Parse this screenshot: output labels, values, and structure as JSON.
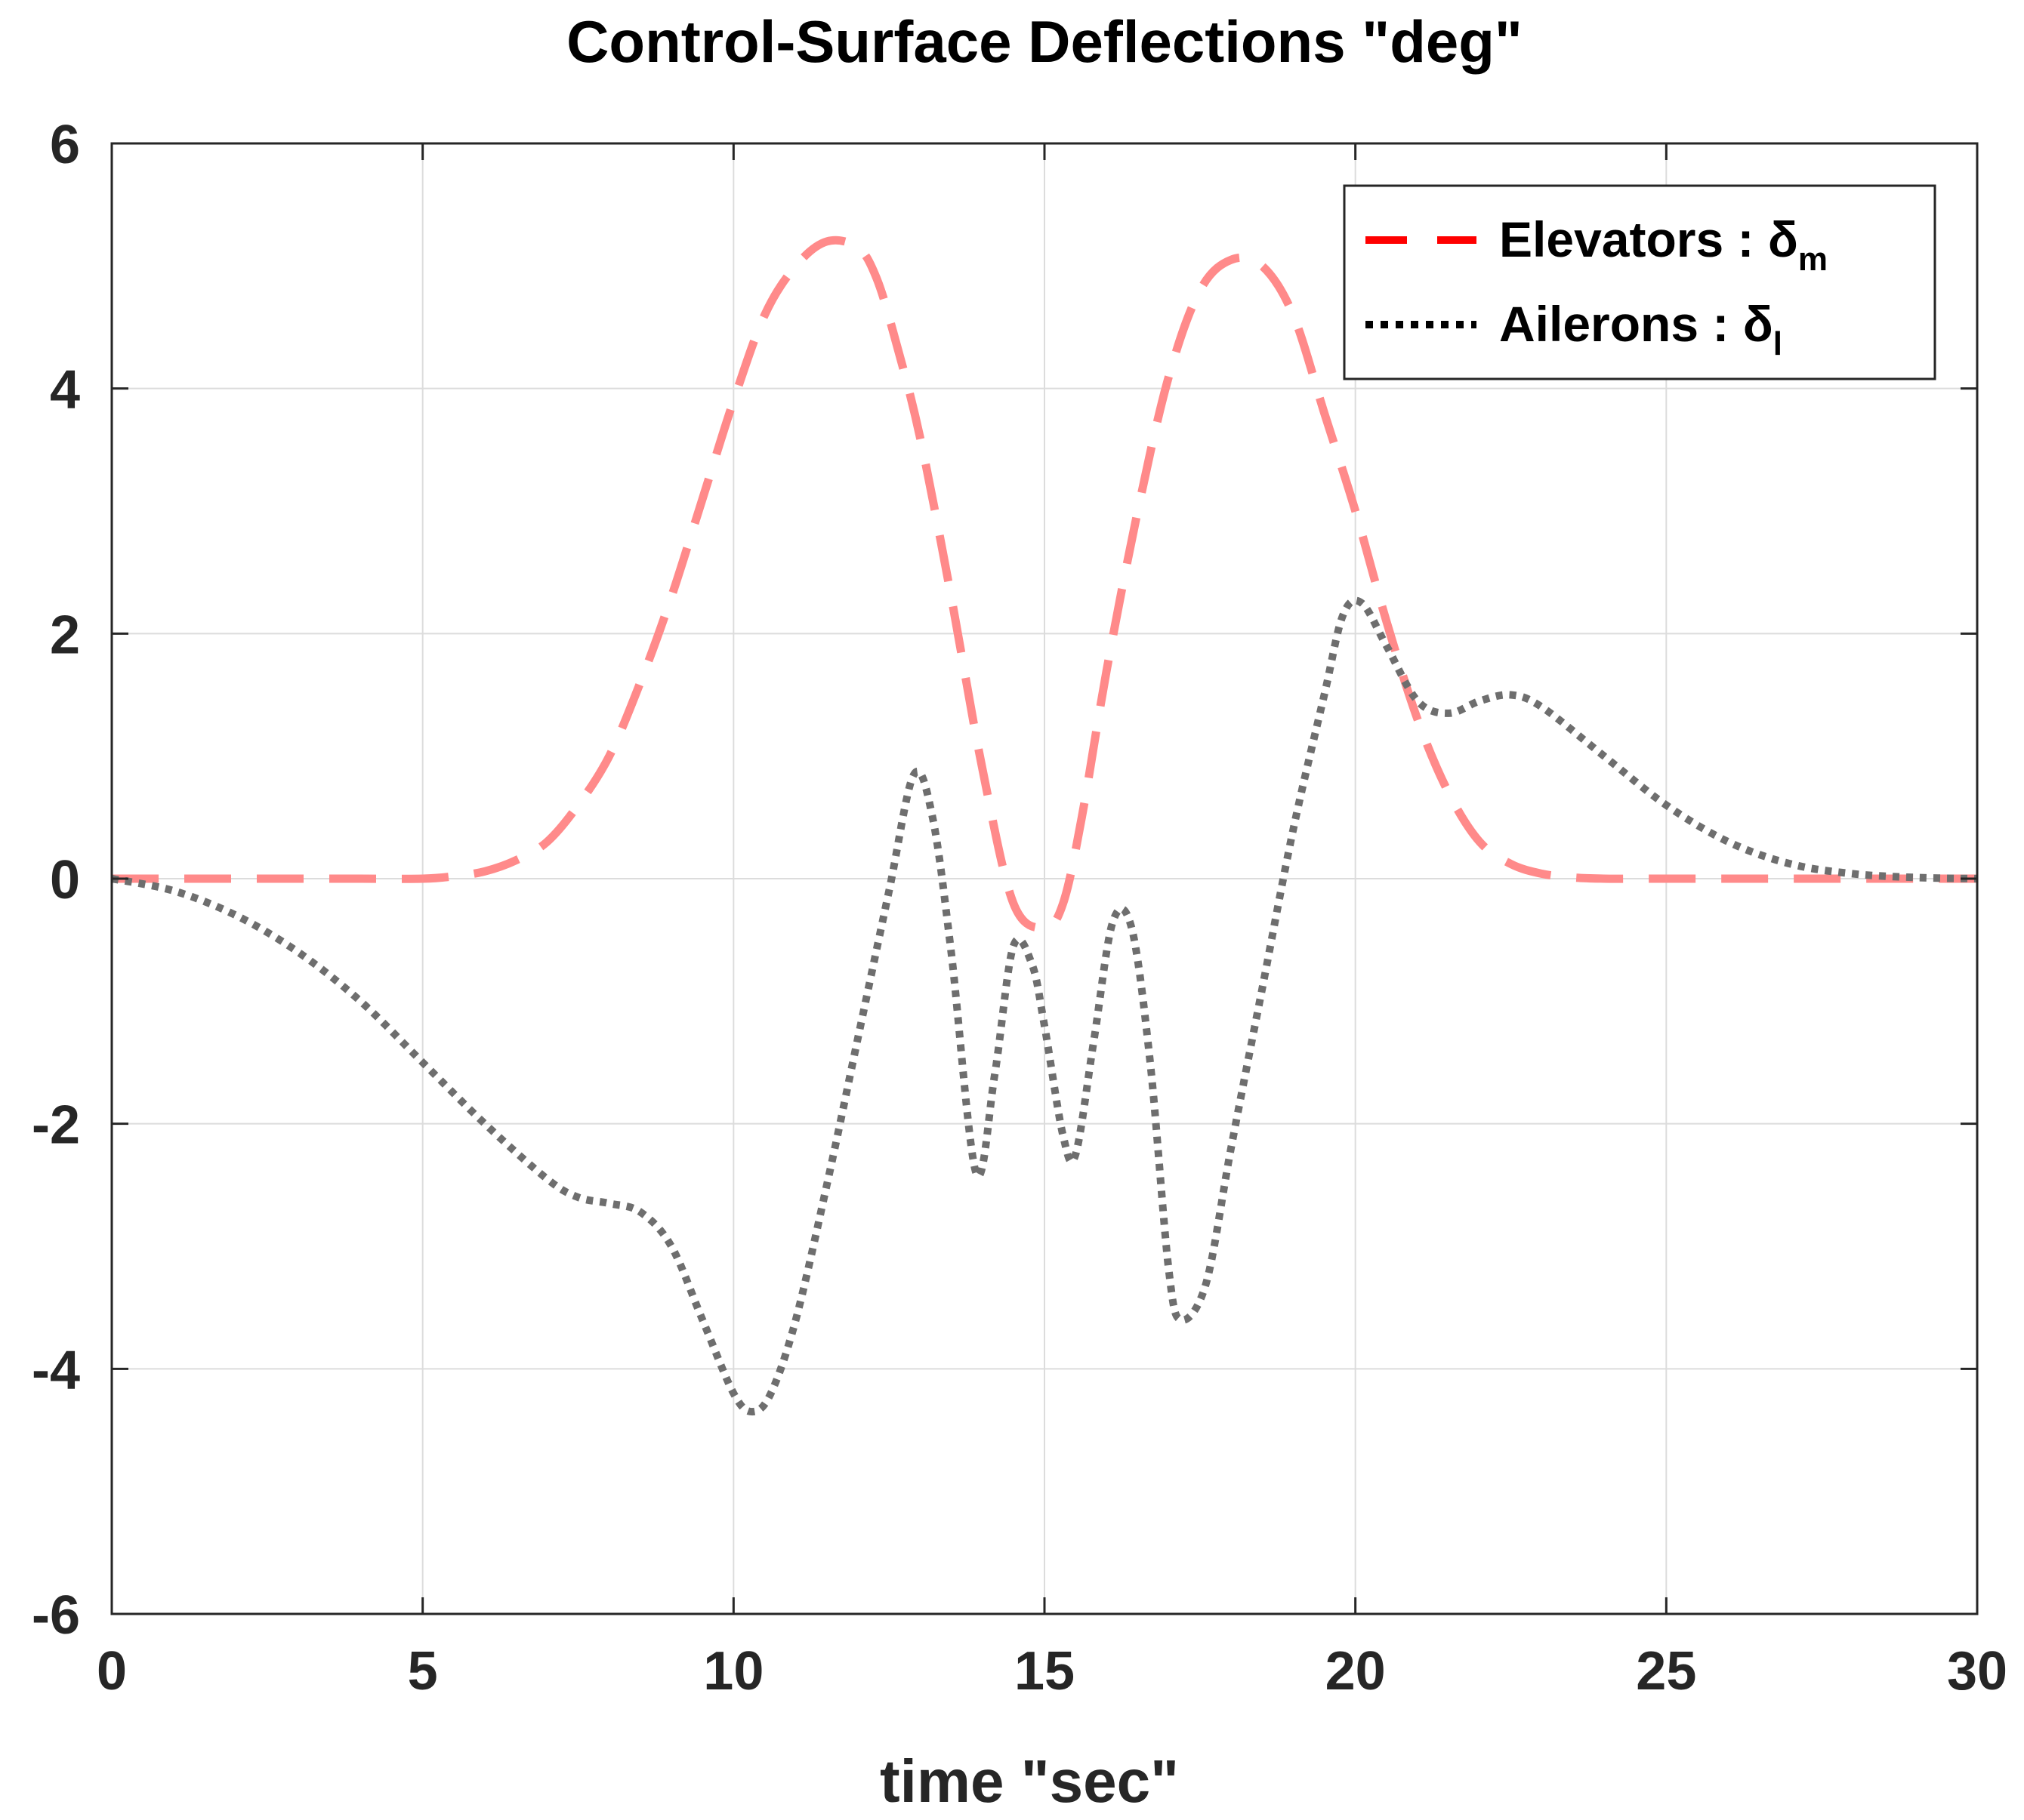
{
  "chart_data": {
    "type": "line",
    "title": "Control-Surface Deflections \"deg\"",
    "xlabel": "time \"sec\"",
    "ylabel": "",
    "xlim": [
      0,
      30
    ],
    "ylim": [
      -6,
      6
    ],
    "xticks": [
      "0",
      "5",
      "10",
      "15",
      "20",
      "25",
      "30"
    ],
    "yticks": [
      "6",
      "4",
      "2",
      "0",
      "-2",
      "-4",
      "-6"
    ],
    "grid": true,
    "legend_position": "top-right",
    "series": [
      {
        "name": "Elevators",
        "legend_label": "Elevators : δ",
        "legend_subscript": "m",
        "color": "#ff8a8a",
        "legend_color": "#ff0000",
        "style": "dashed",
        "x": [
          0,
          1,
          2,
          3,
          4,
          5,
          5.5,
          6,
          6.5,
          7,
          7.5,
          8,
          8.5,
          9,
          9.5,
          10,
          10.5,
          11,
          11.5,
          12,
          12.3,
          12.6,
          13,
          13.5,
          14,
          14.5,
          15,
          15.3,
          15.6,
          16,
          16.5,
          17,
          17.5,
          18,
          18.5,
          19,
          19.5,
          20,
          20.5,
          21,
          21.5,
          22,
          22.5,
          23,
          23.5,
          24,
          24.5,
          25,
          26,
          27,
          28,
          29,
          30
        ],
        "values": [
          0,
          0,
          0,
          0,
          0,
          0,
          0.02,
          0.06,
          0.15,
          0.3,
          0.6,
          1.0,
          1.6,
          2.3,
          3.1,
          3.9,
          4.6,
          5.0,
          5.2,
          5.15,
          4.9,
          4.4,
          3.6,
          2.3,
          0.9,
          -0.2,
          -0.4,
          -0.2,
          0.5,
          1.7,
          3.0,
          4.1,
          4.8,
          5.05,
          5.0,
          4.6,
          3.8,
          3.0,
          2.1,
          1.3,
          0.7,
          0.3,
          0.12,
          0.04,
          0.01,
          0,
          0,
          0,
          0,
          0,
          0,
          0,
          0
        ]
      },
      {
        "name": "Ailerons",
        "legend_label": "Ailerons : δ",
        "legend_subscript": "l",
        "color": "#6e6e6e",
        "legend_color": "#000000",
        "style": "dotted",
        "x": [
          0,
          1,
          2,
          3,
          4,
          5,
          6,
          7,
          7.5,
          8,
          8.5,
          9,
          9.5,
          10,
          10.3,
          10.6,
          11,
          11.5,
          12,
          12.5,
          12.9,
          13.2,
          13.5,
          13.9,
          14.2,
          14.5,
          14.8,
          15,
          15.3,
          15.5,
          15.8,
          16.1,
          16.4,
          16.7,
          17,
          17.2,
          17.6,
          18,
          18.5,
          19,
          19.5,
          19.8,
          20.1,
          20.5,
          21,
          21.5,
          22,
          22.5,
          23,
          24,
          25,
          26,
          27,
          28,
          29,
          30
        ],
        "values": [
          0,
          -0.1,
          -0.3,
          -0.6,
          -1.0,
          -1.5,
          -2.0,
          -2.45,
          -2.6,
          -2.65,
          -2.72,
          -3.0,
          -3.6,
          -4.2,
          -4.35,
          -4.2,
          -3.6,
          -2.5,
          -1.3,
          -0.1,
          0.85,
          0.5,
          -0.6,
          -2.4,
          -1.6,
          -0.55,
          -0.7,
          -1.2,
          -2.1,
          -2.25,
          -1.3,
          -0.35,
          -0.4,
          -1.5,
          -3.2,
          -3.6,
          -3.3,
          -2.2,
          -0.9,
          0.4,
          1.5,
          2.15,
          2.25,
          1.9,
          1.45,
          1.35,
          1.45,
          1.5,
          1.4,
          1.0,
          0.6,
          0.3,
          0.12,
          0.04,
          0.01,
          0
        ]
      }
    ]
  }
}
